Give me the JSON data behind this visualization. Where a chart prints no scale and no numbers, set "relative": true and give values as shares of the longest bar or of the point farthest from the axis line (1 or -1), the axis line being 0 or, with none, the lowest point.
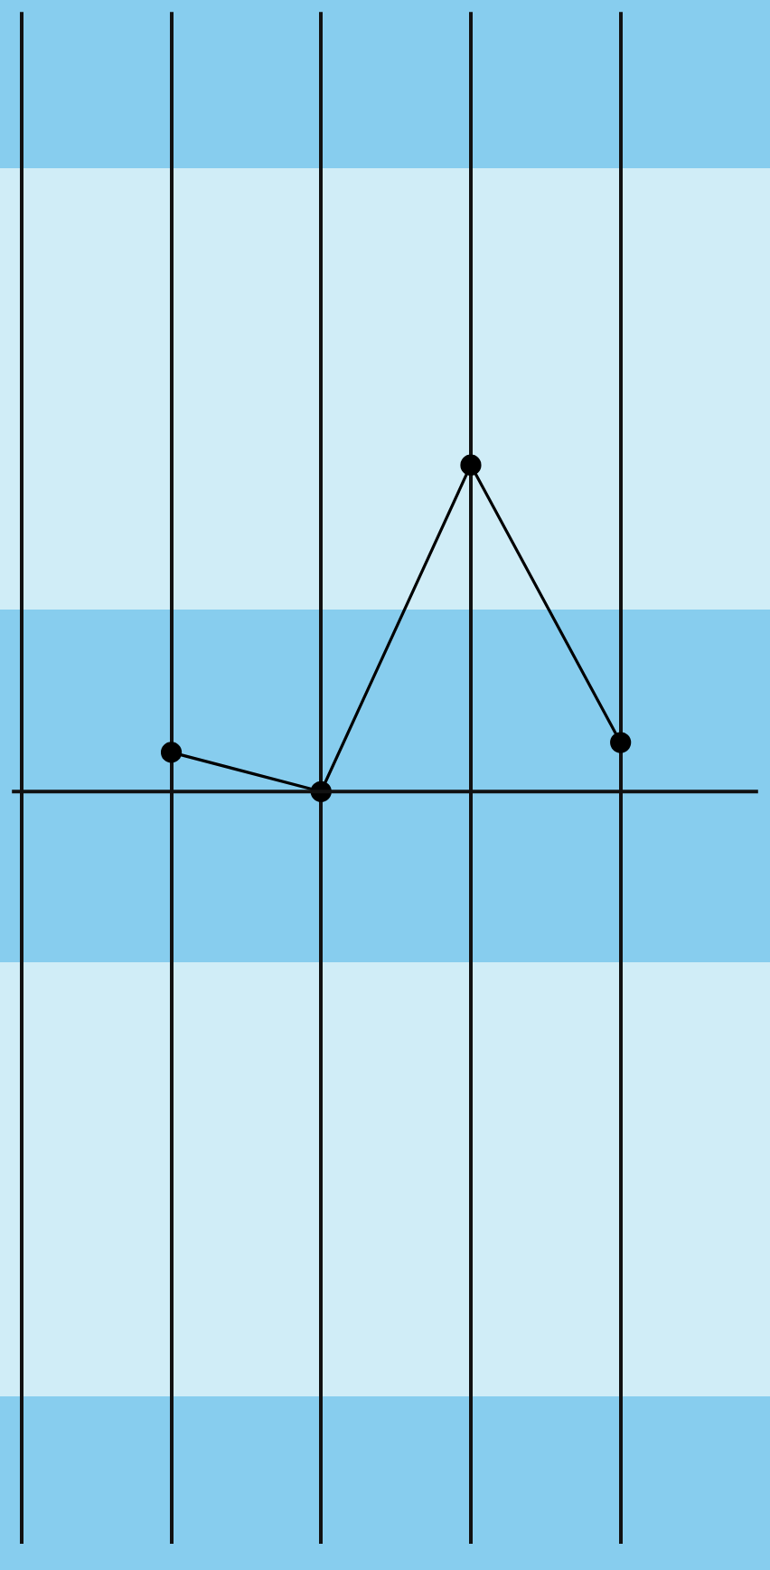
{
  "chart_data": {
    "type": "line",
    "relative": true,
    "categories": [
      null,
      null,
      null,
      null
    ],
    "series": [
      {
        "color": "#000000",
        "values": [
          0.12,
          0,
          1,
          0.15
        ]
      }
    ],
    "marker": "circle",
    "line_style": "solid",
    "grid": "x",
    "legend": false
  }
}
